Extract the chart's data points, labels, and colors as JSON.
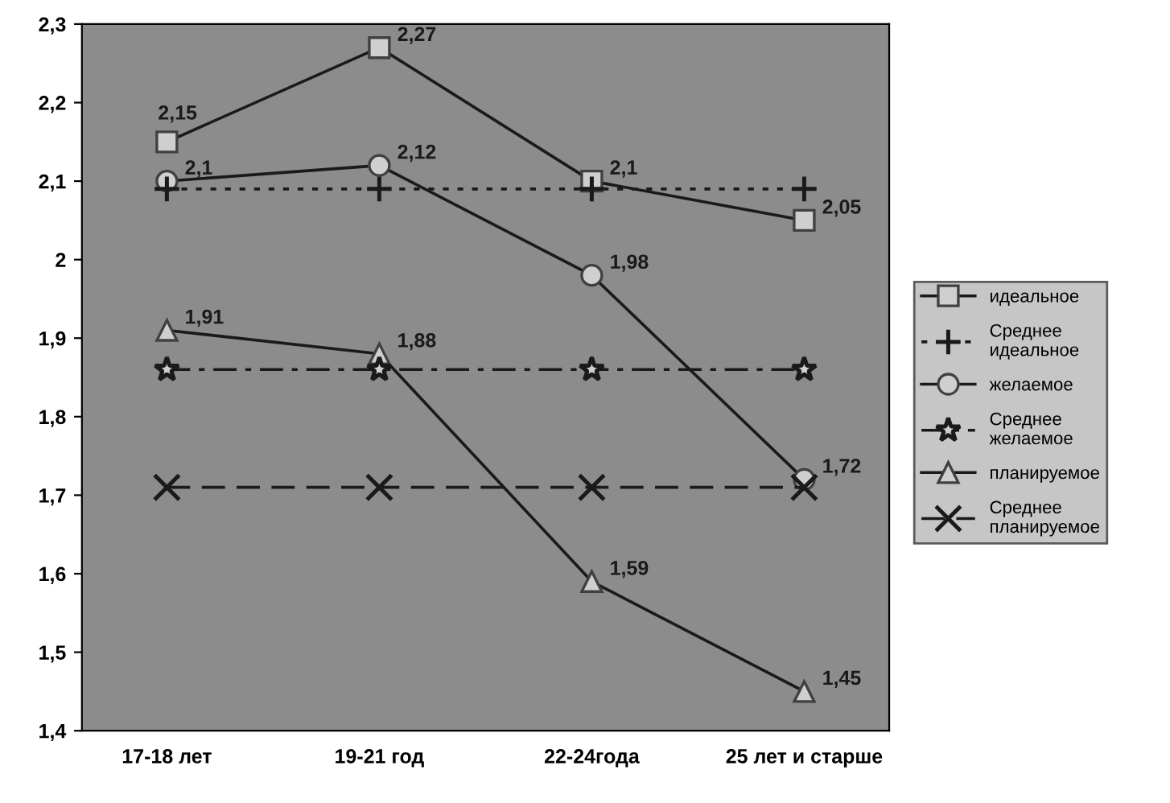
{
  "chart_data": {
    "type": "line",
    "categories": [
      "17-18 лет",
      "19-21 год",
      "22-24года",
      "25 лет и старше"
    ],
    "series": [
      {
        "name": "идеальное",
        "color": "#1a1a1a",
        "marker": "square",
        "line_style": "solid",
        "values": [
          2.15,
          2.27,
          2.1,
          2.05
        ],
        "value_labels": [
          "2,15",
          "2,27",
          "2,1",
          "2,05"
        ]
      },
      {
        "name": "Среднее идеальное",
        "color": "#1a1a1a",
        "marker": "cross",
        "line_style": "dotted",
        "values": [
          2.09,
          2.09,
          2.09,
          2.09
        ]
      },
      {
        "name": "желаемое",
        "color": "#1a1a1a",
        "marker": "circle",
        "line_style": "solid",
        "values": [
          2.1,
          2.12,
          1.98,
          1.72
        ],
        "value_labels": [
          "2,1",
          "2,12",
          "1,98",
          "1,72"
        ]
      },
      {
        "name": "Среднее желаемое",
        "color": "#1a1a1a",
        "marker": "star",
        "line_style": "dashdot",
        "values": [
          1.86,
          1.86,
          1.86,
          1.86
        ]
      },
      {
        "name": "планируемое",
        "color": "#1a1a1a",
        "marker": "triangle",
        "line_style": "solid",
        "values": [
          1.91,
          1.88,
          1.59,
          1.45
        ],
        "value_labels": [
          "1,91",
          "1,88",
          "1,59",
          "1,45"
        ]
      },
      {
        "name": "Среднее планируемое",
        "color": "#1a1a1a",
        "marker": "x",
        "line_style": "dashed",
        "values": [
          1.71,
          1.71,
          1.71,
          1.71
        ]
      }
    ],
    "ylim": [
      1.4,
      2.3
    ],
    "yticks": [
      {
        "value": 1.4,
        "label": "1,4"
      },
      {
        "value": 1.5,
        "label": "1,5"
      },
      {
        "value": 1.6,
        "label": "1,6"
      },
      {
        "value": 1.7,
        "label": "1,7"
      },
      {
        "value": 1.8,
        "label": "1,8"
      },
      {
        "value": 1.9,
        "label": "1,9"
      },
      2,
      {
        "value": 2.1,
        "label": "2,1"
      },
      {
        "value": 2.2,
        "label": "2,2"
      },
      {
        "value": 2.3,
        "label": "2,3"
      }
    ],
    "grid": false,
    "legend": "right"
  }
}
